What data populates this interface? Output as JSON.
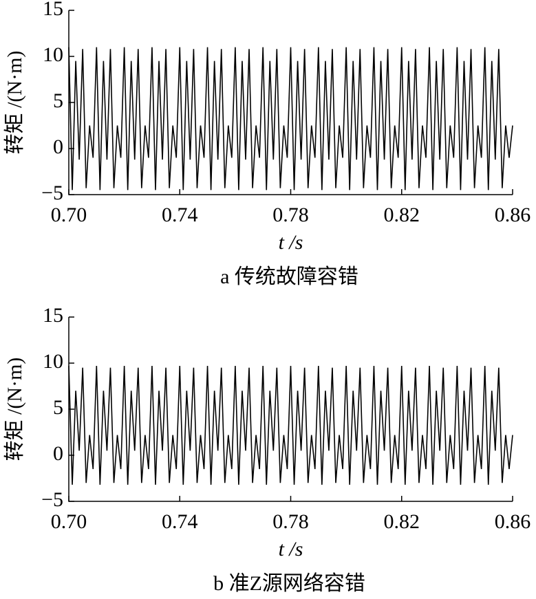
{
  "chart_data": [
    {
      "type": "line",
      "caption": "a 传统故障容错",
      "xlabel": "t /s",
      "ylabel": "转矩 /(N·m)",
      "color": "#000000",
      "x": [
        0.7,
        0.70125,
        0.7025,
        0.70375,
        0.705,
        0.70625,
        0.7075,
        0.70875,
        0.71,
        0.71125,
        0.7125,
        0.71375,
        0.715,
        0.71625,
        0.7175,
        0.71875,
        0.72,
        0.72125,
        0.7225,
        0.72375,
        0.725,
        0.72625,
        0.7275,
        0.72875,
        0.73,
        0.73125,
        0.7325,
        0.73375,
        0.735,
        0.73625,
        0.7375,
        0.73875,
        0.74,
        0.74125,
        0.7425,
        0.74375,
        0.745,
        0.74625,
        0.7475,
        0.74875,
        0.75,
        0.75125,
        0.7525,
        0.75375,
        0.755,
        0.75625,
        0.7575,
        0.75875,
        0.76,
        0.76125,
        0.7625,
        0.76375,
        0.765,
        0.76625,
        0.7675,
        0.76875,
        0.77,
        0.77125,
        0.7725,
        0.77375,
        0.775,
        0.77625,
        0.7775,
        0.77875,
        0.78,
        0.78125,
        0.7825,
        0.78375,
        0.785,
        0.78625,
        0.7875,
        0.78875,
        0.79,
        0.79125,
        0.7925,
        0.79375,
        0.795,
        0.79625,
        0.7975,
        0.79875,
        0.8,
        0.80125,
        0.8025,
        0.80375,
        0.805,
        0.80625,
        0.8075,
        0.80875,
        0.81,
        0.81125,
        0.8125,
        0.81375,
        0.815,
        0.81625,
        0.8175,
        0.81875,
        0.82,
        0.82125,
        0.8225,
        0.82375,
        0.825,
        0.82625,
        0.8275,
        0.82875,
        0.83,
        0.83125,
        0.8325,
        0.83375,
        0.835,
        0.83625,
        0.8375,
        0.83875,
        0.84,
        0.84125,
        0.8425,
        0.84375,
        0.845,
        0.84625,
        0.8475,
        0.84875,
        0.85,
        0.85125,
        0.8525,
        0.85375,
        0.855,
        0.85625,
        0.8575,
        0.85875,
        0.86
      ],
      "values": [
        11,
        -4.5,
        9.5,
        -1.2,
        10.8,
        -4.3,
        2.5,
        -1,
        11,
        -4.5,
        9.5,
        -1.2,
        10.8,
        -4.3,
        2.5,
        -1,
        11,
        -4.5,
        9.5,
        -1.2,
        10.8,
        -4.3,
        2.5,
        -1,
        11,
        -4.5,
        9.5,
        -1.2,
        10.8,
        -4.3,
        2.5,
        -1,
        11,
        -4.5,
        9.5,
        -1.2,
        10.8,
        -4.3,
        2.5,
        -1,
        11,
        -4.5,
        9.5,
        -1.2,
        10.8,
        -4.3,
        2.5,
        -1,
        11,
        -4.5,
        9.5,
        -1.2,
        10.8,
        -4.3,
        2.5,
        -1,
        11,
        -4.5,
        9.5,
        -1.2,
        10.8,
        -4.3,
        2.5,
        -1,
        11,
        -4.5,
        9.5,
        -1.2,
        10.8,
        -4.3,
        2.5,
        -1,
        11,
        -4.5,
        9.5,
        -1.2,
        10.8,
        -4.3,
        2.5,
        -1,
        11,
        -4.5,
        9.5,
        -1.2,
        10.8,
        -4.3,
        2.5,
        -1,
        11,
        -4.5,
        9.5,
        -1.2,
        10.8,
        -4.3,
        2.5,
        -1,
        11,
        -4.5,
        9.5,
        -1.2,
        10.8,
        -4.3,
        2.5,
        -1,
        11,
        -4.5,
        9.5,
        -1.2,
        10.8,
        -4.3,
        2.5,
        -1,
        11,
        -4.5,
        9.5,
        -1.2,
        10.8,
        -4.3,
        2.5,
        -1,
        11,
        -4.5,
        9.5,
        -1.2,
        10.8,
        -4.3,
        2.5,
        -1,
        2.5
      ],
      "xlim": [
        0.7,
        0.86
      ],
      "ylim": [
        -5,
        15
      ],
      "xticks": [
        {
          "value": 0.7,
          "label": "0.70"
        },
        {
          "value": 0.74,
          "label": "0.74"
        },
        {
          "value": 0.78,
          "label": "0.78"
        },
        {
          "value": 0.82,
          "label": "0.82"
        },
        {
          "value": 0.86,
          "label": "0.86"
        }
      ],
      "yticks": [
        {
          "value": -5,
          "label": "−5"
        },
        0,
        5,
        10,
        15
      ]
    },
    {
      "type": "line",
      "caption": "b 准Z源网络容错",
      "xlabel": "t /s",
      "ylabel": "转矩 /(N·m)",
      "color": "#000000",
      "x": [
        0.7,
        0.70125,
        0.7025,
        0.70375,
        0.705,
        0.70625,
        0.7075,
        0.70875,
        0.71,
        0.71125,
        0.7125,
        0.71375,
        0.715,
        0.71625,
        0.7175,
        0.71875,
        0.72,
        0.72125,
        0.7225,
        0.72375,
        0.725,
        0.72625,
        0.7275,
        0.72875,
        0.73,
        0.73125,
        0.7325,
        0.73375,
        0.735,
        0.73625,
        0.7375,
        0.73875,
        0.74,
        0.74125,
        0.7425,
        0.74375,
        0.745,
        0.74625,
        0.7475,
        0.74875,
        0.75,
        0.75125,
        0.7525,
        0.75375,
        0.755,
        0.75625,
        0.7575,
        0.75875,
        0.76,
        0.76125,
        0.7625,
        0.76375,
        0.765,
        0.76625,
        0.7675,
        0.76875,
        0.77,
        0.77125,
        0.7725,
        0.77375,
        0.775,
        0.77625,
        0.7775,
        0.77875,
        0.78,
        0.78125,
        0.7825,
        0.78375,
        0.785,
        0.78625,
        0.7875,
        0.78875,
        0.79,
        0.79125,
        0.7925,
        0.79375,
        0.795,
        0.79625,
        0.7975,
        0.79875,
        0.8,
        0.80125,
        0.8025,
        0.80375,
        0.805,
        0.80625,
        0.8075,
        0.80875,
        0.81,
        0.81125,
        0.8125,
        0.81375,
        0.815,
        0.81625,
        0.8175,
        0.81875,
        0.82,
        0.82125,
        0.8225,
        0.82375,
        0.825,
        0.82625,
        0.8275,
        0.82875,
        0.83,
        0.83125,
        0.8325,
        0.83375,
        0.835,
        0.83625,
        0.8375,
        0.83875,
        0.84,
        0.84125,
        0.8425,
        0.84375,
        0.845,
        0.84625,
        0.8475,
        0.84875,
        0.85,
        0.85125,
        0.8525,
        0.85375,
        0.855,
        0.85625,
        0.8575,
        0.85875,
        0.86
      ],
      "values": [
        9.7,
        -3.2,
        7,
        0.5,
        9.5,
        -3,
        2.2,
        -1.5,
        9.7,
        -3.2,
        7,
        0.5,
        9.5,
        -3,
        2.2,
        -1.5,
        9.7,
        -3.2,
        7,
        0.5,
        9.5,
        -3,
        2.2,
        -1.5,
        9.7,
        -3.2,
        7,
        0.5,
        9.5,
        -3,
        2.2,
        -1.5,
        9.7,
        -3.2,
        7,
        0.5,
        9.5,
        -3,
        2.2,
        -1.5,
        9.7,
        -3.2,
        7,
        0.5,
        9.5,
        -3,
        2.2,
        -1.5,
        9.7,
        -3.2,
        7,
        0.5,
        9.5,
        -3,
        2.2,
        -1.5,
        9.7,
        -3.2,
        7,
        0.5,
        9.5,
        -3,
        2.2,
        -1.5,
        9.7,
        -3.2,
        7,
        0.5,
        9.5,
        -3,
        2.2,
        -1.5,
        9.7,
        -3.2,
        7,
        0.5,
        9.5,
        -3,
        2.2,
        -1.5,
        9.7,
        -3.2,
        7,
        0.5,
        9.5,
        -3,
        2.2,
        -1.5,
        9.7,
        -3.2,
        7,
        0.5,
        9.5,
        -3,
        2.2,
        -1.5,
        9.7,
        -3.2,
        7,
        0.5,
        9.5,
        -3,
        2.2,
        -1.5,
        9.7,
        -3.2,
        7,
        0.5,
        9.5,
        -3,
        2.2,
        -1.5,
        9.7,
        -3.2,
        7,
        0.5,
        9.5,
        -3,
        2.2,
        -1.5,
        9.7,
        -3.2,
        7,
        0.5,
        9.5,
        -3,
        2.2,
        -1.5,
        2.2
      ],
      "xlim": [
        0.7,
        0.86
      ],
      "ylim": [
        -5,
        15
      ],
      "xticks": [
        {
          "value": 0.7,
          "label": "0.70"
        },
        {
          "value": 0.74,
          "label": "0.74"
        },
        {
          "value": 0.78,
          "label": "0.78"
        },
        {
          "value": 0.82,
          "label": "0.82"
        },
        {
          "value": 0.86,
          "label": "0.86"
        }
      ],
      "yticks": [
        {
          "value": -5,
          "label": "−5"
        },
        0,
        5,
        10,
        15
      ]
    }
  ]
}
